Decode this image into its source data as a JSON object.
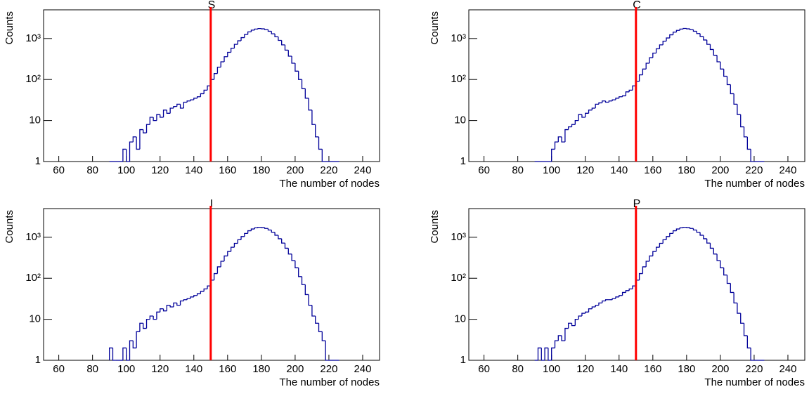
{
  "chart_data": [
    {
      "type": "histogram",
      "title": "S",
      "x_label": "The number of nodes",
      "y_label": "Counts",
      "color": "#000099",
      "log_y": true,
      "grid": false,
      "bins": [
        90,
        92,
        94,
        96,
        98,
        100,
        102,
        104,
        106,
        108,
        110,
        112,
        114,
        116,
        118,
        120,
        122,
        124,
        126,
        128,
        130,
        132,
        134,
        136,
        138,
        140,
        142,
        144,
        146,
        148,
        150,
        152,
        154,
        156,
        158,
        160,
        162,
        164,
        166,
        168,
        170,
        172,
        174,
        176,
        178,
        180,
        182,
        184,
        186,
        188,
        190,
        192,
        194,
        196,
        198,
        200,
        202,
        204,
        206,
        208,
        210,
        212,
        214,
        216,
        218,
        220,
        222,
        224,
        226
      ],
      "values": [
        0,
        1,
        0,
        1,
        2,
        1,
        3,
        4,
        2,
        6,
        5,
        8,
        12,
        10,
        14,
        12,
        18,
        15,
        20,
        22,
        25,
        20,
        28,
        30,
        32,
        35,
        38,
        45,
        55,
        70,
        100,
        140,
        200,
        270,
        360,
        460,
        580,
        720,
        880,
        1050,
        1250,
        1450,
        1600,
        1700,
        1750,
        1720,
        1650,
        1500,
        1300,
        1100,
        900,
        700,
        520,
        370,
        250,
        160,
        100,
        60,
        35,
        18,
        8,
        4,
        2,
        0,
        0,
        0,
        0,
        0
      ],
      "xlim": [
        51,
        250
      ],
      "xticks": [
        60,
        80,
        100,
        120,
        140,
        160,
        180,
        200,
        220,
        240
      ],
      "ylim": [
        1,
        5000
      ],
      "yticks": [
        1,
        10,
        {
          "value": 100,
          "label": "10²"
        },
        {
          "value": 1000,
          "label": "10³"
        }
      ],
      "vline": {
        "value": 150,
        "color": "#ff0000"
      }
    },
    {
      "type": "histogram",
      "title": "C",
      "x_label": "The number of nodes",
      "y_label": "Counts",
      "color": "#000099",
      "log_y": true,
      "grid": false,
      "bins": [
        90,
        92,
        94,
        96,
        98,
        100,
        102,
        104,
        106,
        108,
        110,
        112,
        114,
        116,
        118,
        120,
        122,
        124,
        126,
        128,
        130,
        132,
        134,
        136,
        138,
        140,
        142,
        144,
        146,
        148,
        150,
        152,
        154,
        156,
        158,
        160,
        162,
        164,
        166,
        168,
        170,
        172,
        174,
        176,
        178,
        180,
        182,
        184,
        186,
        188,
        190,
        192,
        194,
        196,
        198,
        200,
        202,
        204,
        206,
        208,
        210,
        212,
        214,
        216,
        218,
        220,
        222,
        224,
        226
      ],
      "values": [
        0,
        0,
        0,
        0,
        1,
        2,
        3,
        4,
        3,
        6,
        7,
        8,
        10,
        14,
        12,
        15,
        18,
        20,
        25,
        27,
        30,
        28,
        30,
        32,
        35,
        38,
        40,
        50,
        55,
        70,
        90,
        130,
        180,
        250,
        340,
        440,
        560,
        700,
        860,
        1030,
        1230,
        1430,
        1580,
        1700,
        1760,
        1720,
        1640,
        1500,
        1320,
        1120,
        920,
        720,
        540,
        390,
        270,
        180,
        120,
        75,
        45,
        25,
        14,
        7,
        4,
        2,
        1,
        1,
        0,
        0
      ],
      "xlim": [
        51,
        250
      ],
      "xticks": [
        60,
        80,
        100,
        120,
        140,
        160,
        180,
        200,
        220,
        240
      ],
      "ylim": [
        1,
        5000
      ],
      "yticks": [
        1,
        10,
        {
          "value": 100,
          "label": "10²"
        },
        {
          "value": 1000,
          "label": "10³"
        }
      ],
      "vline": {
        "value": 150,
        "color": "#ff0000"
      }
    },
    {
      "type": "histogram",
      "title": "I",
      "x_label": "The number of nodes",
      "y_label": "Counts",
      "color": "#000099",
      "log_y": true,
      "grid": false,
      "bins": [
        90,
        92,
        94,
        96,
        98,
        100,
        102,
        104,
        106,
        108,
        110,
        112,
        114,
        116,
        118,
        120,
        122,
        124,
        126,
        128,
        130,
        132,
        134,
        136,
        138,
        140,
        142,
        144,
        146,
        148,
        150,
        152,
        154,
        156,
        158,
        160,
        162,
        164,
        166,
        168,
        170,
        172,
        174,
        176,
        178,
        180,
        182,
        184,
        186,
        188,
        190,
        192,
        194,
        196,
        198,
        200,
        202,
        204,
        206,
        208,
        210,
        212,
        214,
        216,
        218,
        220,
        222,
        224,
        226
      ],
      "values": [
        2,
        0,
        0,
        1,
        2,
        1,
        3,
        2,
        5,
        8,
        6,
        10,
        12,
        10,
        15,
        18,
        16,
        22,
        20,
        25,
        22,
        28,
        30,
        32,
        35,
        38,
        42,
        48,
        55,
        65,
        90,
        130,
        190,
        260,
        350,
        450,
        570,
        710,
        870,
        1040,
        1240,
        1440,
        1590,
        1700,
        1750,
        1720,
        1640,
        1500,
        1320,
        1120,
        920,
        720,
        540,
        390,
        270,
        180,
        110,
        70,
        40,
        22,
        12,
        8,
        5,
        3,
        1,
        0,
        0,
        0
      ],
      "xlim": [
        51,
        250
      ],
      "xticks": [
        60,
        80,
        100,
        120,
        140,
        160,
        180,
        200,
        220,
        240
      ],
      "ylim": [
        1,
        5000
      ],
      "yticks": [
        1,
        10,
        {
          "value": 100,
          "label": "10²"
        },
        {
          "value": 1000,
          "label": "10³"
        }
      ],
      "vline": {
        "value": 150,
        "color": "#ff0000"
      }
    },
    {
      "type": "histogram",
      "title": "P",
      "x_label": "The number of nodes",
      "y_label": "Counts",
      "color": "#000099",
      "log_y": true,
      "grid": false,
      "bins": [
        90,
        92,
        94,
        96,
        98,
        100,
        102,
        104,
        106,
        108,
        110,
        112,
        114,
        116,
        118,
        120,
        122,
        124,
        126,
        128,
        130,
        132,
        134,
        136,
        138,
        140,
        142,
        144,
        146,
        148,
        150,
        152,
        154,
        156,
        158,
        160,
        162,
        164,
        166,
        168,
        170,
        172,
        174,
        176,
        178,
        180,
        182,
        184,
        186,
        188,
        190,
        192,
        194,
        196,
        198,
        200,
        202,
        204,
        206,
        208,
        210,
        212,
        214,
        216,
        218,
        220,
        222,
        224,
        226
      ],
      "values": [
        0,
        2,
        1,
        2,
        1,
        2,
        3,
        4,
        3,
        6,
        8,
        7,
        10,
        12,
        14,
        15,
        18,
        20,
        22,
        25,
        28,
        30,
        30,
        32,
        35,
        38,
        45,
        50,
        55,
        65,
        90,
        130,
        190,
        260,
        350,
        450,
        570,
        710,
        870,
        1040,
        1240,
        1440,
        1590,
        1700,
        1750,
        1720,
        1640,
        1500,
        1320,
        1120,
        920,
        720,
        540,
        390,
        270,
        180,
        120,
        75,
        45,
        25,
        14,
        8,
        4,
        2,
        1,
        1,
        0,
        1
      ],
      "xlim": [
        51,
        250
      ],
      "xticks": [
        60,
        80,
        100,
        120,
        140,
        160,
        180,
        200,
        220,
        240
      ],
      "ylim": [
        1,
        5000
      ],
      "yticks": [
        1,
        10,
        {
          "value": 100,
          "label": "10²"
        },
        {
          "value": 1000,
          "label": "10³"
        }
      ],
      "vline": {
        "value": 150,
        "color": "#ff0000"
      }
    }
  ]
}
